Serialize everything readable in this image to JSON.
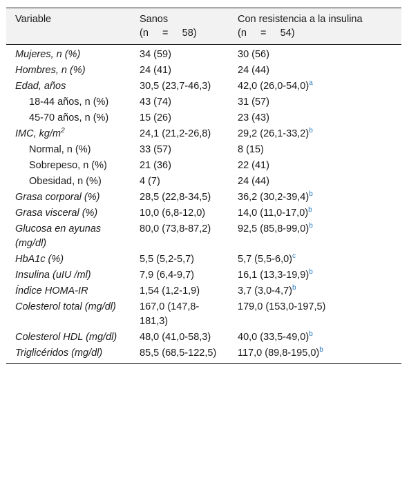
{
  "header": {
    "variable": "Variable",
    "sanos": "Sanos",
    "sanos_n": "(n     =     58)",
    "resist": "Con resistencia a la insulina",
    "resist_n": "(n     =     54)"
  },
  "rows": [
    {
      "var": "Mujeres, n (%)",
      "italic": true,
      "sanos": "34 (59)",
      "resist": "30 (56)",
      "sup": ""
    },
    {
      "var": "Hombres, n (%)",
      "italic": true,
      "sanos": "24 (41)",
      "resist": "24 (44)",
      "sup": ""
    },
    {
      "var": "Edad, años",
      "italic": true,
      "sanos": "30,5 (23,7-46,3)",
      "resist": "42,0 (26,0-54,0)",
      "sup": "a"
    },
    {
      "var": "18-44 años, n (%)",
      "italic": false,
      "sanos": "43 (74)",
      "resist": "31 (57)",
      "sup": ""
    },
    {
      "var": "45-70 años, n (%)",
      "italic": false,
      "sanos": "15 (26)",
      "resist": "23 (43)",
      "sup": ""
    },
    {
      "var": "IMC, kg/m",
      "var_sup": "2",
      "italic": true,
      "sanos": "24,1 (21,2-26,8)",
      "resist": "29,2 (26,1-33,2)",
      "sup": "b"
    },
    {
      "var": "Normal, n (%)",
      "italic": false,
      "sanos": "33 (57)",
      "resist": "8 (15)",
      "sup": ""
    },
    {
      "var": "Sobrepeso, n (%)",
      "italic": false,
      "sanos": "21 (36)",
      "resist": "22 (41)",
      "sup": ""
    },
    {
      "var": "Obesidad, n (%)",
      "italic": false,
      "sanos": "4 (7)",
      "resist": "24 (44)",
      "sup": ""
    },
    {
      "var": "Grasa corporal (%)",
      "italic": true,
      "sanos": "28,5 (22,8-34,5)",
      "resist": "36,2 (30,2-39,4)",
      "sup": "b"
    },
    {
      "var": "Grasa visceral (%)",
      "italic": true,
      "sanos": "10,0 (6,8-12,0)",
      "resist": "14,0 (11,0-17,0)",
      "sup": "b"
    },
    {
      "var": "Glucosa en ayunas (mg/dl)",
      "italic": true,
      "sanos": "80,0 (73,8-87,2)",
      "resist": "92,5 (85,8-99,0)",
      "sup": "b"
    },
    {
      "var": "HbA1c (%)",
      "italic": true,
      "sanos": "5,5 (5,2-5,7)",
      "resist": "5,7 (5,5-6,0)",
      "sup": "c"
    },
    {
      "var": "Insulina (uIU /ml)",
      "italic": true,
      "sanos": "7,9 (6,4-9,7)",
      "resist": "16,1 (13,3-19,9)",
      "sup": "b"
    },
    {
      "var": "Índice HOMA-IR",
      "italic": true,
      "sanos": "1,54 (1,2-1,9)",
      "resist": "3,7 (3,0-4,7)",
      "sup": "b"
    },
    {
      "var": "Colesterol total (mg/dl)",
      "italic": true,
      "sanos": "167,0 (147,8-181,3)",
      "resist": "179,0 (153,0-197,5)",
      "sup": ""
    },
    {
      "var": "Colesterol HDL (mg/dl)",
      "italic": true,
      "sanos": "48,0 (41,0-58,3)",
      "resist": "40,0 (33,5-49,0)",
      "sup": "b"
    },
    {
      "var": "Triglicéridos (mg/dl)",
      "italic": true,
      "sanos": "85,5 (68,5-122,5)",
      "resist": "117,0 (89,8-195,0)",
      "sup": "b"
    }
  ]
}
